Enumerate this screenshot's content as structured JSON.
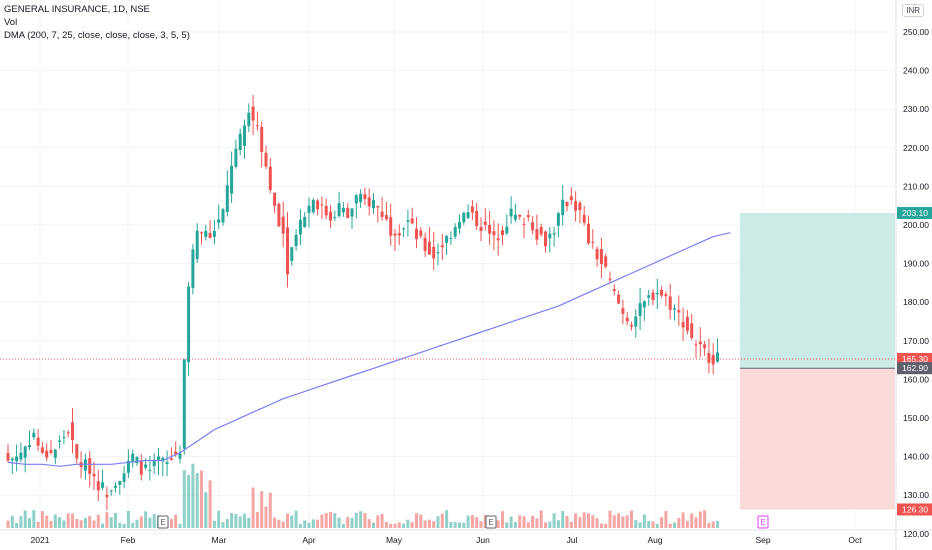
{
  "header": {
    "symbol": "GENERAL INSURANCE, 1D, NSE",
    "vol_label": "Vol",
    "indicator": "DMA (200, 7, 25, close, close, close, 3, 5, 5)",
    "currency": "INR"
  },
  "colors": {
    "up": "#26a69a",
    "down": "#ef5350",
    "vol_up": "#8fd0c8",
    "vol_down": "#f4a6a4",
    "ma": "#7b7ff0",
    "target_zone": "#cdebe6",
    "stop_zone": "#fadbd9",
    "target_badge": "#26a69a",
    "stop_badge": "#ef5350",
    "price_badge": "#ef5350",
    "entry_badge": "#5d606b",
    "grid": "#f0f3fa"
  },
  "chart_data": {
    "type": "candlestick",
    "title": "GENERAL INSURANCE, 1D, NSE",
    "yaxis_ticks": [
      "120.00",
      "130.00",
      "140.00",
      "150.00",
      "160.00",
      "170.00",
      "180.00",
      "190.00",
      "200.00",
      "210.00",
      "220.00",
      "230.00",
      "240.00",
      "250.00"
    ],
    "ylim": [
      117,
      255
    ],
    "xaxis_ticks": [
      "2021",
      "Feb",
      "Mar",
      "Apr",
      "May",
      "Jun",
      "Jul",
      "Aug",
      "Sep",
      "Oct"
    ],
    "markers": [
      {
        "label": "E",
        "after_tick": "Feb"
      },
      {
        "label": "E",
        "after_tick": "Jun"
      },
      {
        "label": "E",
        "after_tick": "Sep"
      }
    ],
    "price_labels": {
      "target": "203.10",
      "current": "165.30",
      "entry": "162.90",
      "stop": "126.30"
    },
    "levels": {
      "target": 203.1,
      "current": 165.3,
      "entry": 162.9,
      "stop": 126.3
    },
    "close_path": [
      [
        0,
        139
      ],
      [
        3,
        141
      ],
      [
        6,
        146
      ],
      [
        8,
        140
      ],
      [
        11,
        142
      ],
      [
        14,
        147
      ],
      [
        16,
        139
      ],
      [
        19,
        137
      ],
      [
        21,
        133
      ],
      [
        23,
        131
      ],
      [
        25,
        134
      ],
      [
        27,
        136
      ],
      [
        29,
        140
      ],
      [
        31,
        137
      ],
      [
        33,
        136
      ],
      [
        35,
        139
      ],
      [
        37,
        138
      ],
      [
        40,
        142
      ],
      [
        42,
        185
      ],
      [
        44,
        200
      ],
      [
        46,
        197
      ],
      [
        48,
        199
      ],
      [
        50,
        203
      ],
      [
        52,
        216
      ],
      [
        54,
        222
      ],
      [
        56,
        229
      ],
      [
        58,
        226
      ],
      [
        60,
        215
      ],
      [
        62,
        205
      ],
      [
        64,
        198
      ],
      [
        65,
        189
      ],
      [
        67,
        199
      ],
      [
        69,
        203
      ],
      [
        71,
        207
      ],
      [
        73,
        204
      ],
      [
        75,
        202
      ],
      [
        77,
        205
      ],
      [
        79,
        202
      ],
      [
        81,
        207
      ],
      [
        83,
        206
      ],
      [
        85,
        206
      ],
      [
        87,
        203
      ],
      [
        89,
        199
      ],
      [
        91,
        199
      ],
      [
        93,
        201
      ],
      [
        95,
        197
      ],
      [
        97,
        194
      ],
      [
        99,
        192
      ],
      [
        101,
        195
      ],
      [
        103,
        198
      ],
      [
        105,
        202
      ],
      [
        107,
        203
      ],
      [
        109,
        201
      ],
      [
        111,
        199
      ],
      [
        113,
        196
      ],
      [
        115,
        199
      ],
      [
        117,
        203
      ],
      [
        119,
        201
      ],
      [
        121,
        202
      ],
      [
        123,
        198
      ],
      [
        125,
        196
      ],
      [
        127,
        199
      ],
      [
        129,
        205
      ],
      [
        131,
        207
      ],
      [
        133,
        203
      ],
      [
        135,
        196
      ],
      [
        137,
        192
      ],
      [
        139,
        188
      ],
      [
        141,
        182
      ],
      [
        143,
        177
      ],
      [
        145,
        175
      ],
      [
        147,
        178
      ],
      [
        149,
        181
      ],
      [
        151,
        183
      ],
      [
        153,
        181
      ],
      [
        155,
        178
      ],
      [
        157,
        175
      ],
      [
        159,
        171
      ],
      [
        161,
        168
      ],
      [
        163,
        166
      ],
      [
        165,
        165.3
      ]
    ],
    "ma_path": [
      [
        0,
        138.5
      ],
      [
        4,
        138
      ],
      [
        8,
        138
      ],
      [
        12,
        137.5
      ],
      [
        16,
        138
      ],
      [
        20,
        138
      ],
      [
        24,
        138
      ],
      [
        28,
        138.5
      ],
      [
        32,
        139
      ],
      [
        36,
        139
      ],
      [
        40,
        141
      ],
      [
        44,
        144
      ],
      [
        48,
        147
      ],
      [
        52,
        149
      ],
      [
        56,
        151
      ],
      [
        60,
        153
      ],
      [
        64,
        155
      ],
      [
        68,
        156.5
      ],
      [
        72,
        158
      ],
      [
        76,
        159.5
      ],
      [
        80,
        161
      ],
      [
        84,
        162.5
      ],
      [
        88,
        164
      ],
      [
        92,
        165.5
      ],
      [
        96,
        167
      ],
      [
        100,
        168.5
      ],
      [
        104,
        170
      ],
      [
        108,
        171.5
      ],
      [
        112,
        173
      ],
      [
        116,
        174.5
      ],
      [
        120,
        176
      ],
      [
        124,
        177.5
      ],
      [
        128,
        179
      ],
      [
        132,
        181
      ],
      [
        136,
        183
      ],
      [
        140,
        185
      ],
      [
        144,
        187
      ],
      [
        148,
        189
      ],
      [
        152,
        191
      ],
      [
        156,
        193
      ],
      [
        160,
        195
      ],
      [
        164,
        197
      ],
      [
        168,
        198
      ]
    ]
  }
}
